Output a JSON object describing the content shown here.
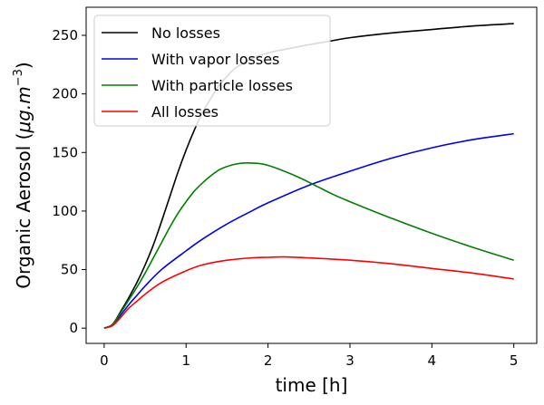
{
  "chart_data": {
    "type": "line",
    "xlabel": "time [h]",
    "ylabel_prefix": "Organic Aerosol (",
    "ylabel_unit_main": "μg.m",
    "ylabel_unit_exp": "−3",
    "ylabel_suffix": ")",
    "xlim": [
      -0.22,
      5.28
    ],
    "ylim": [
      -13,
      274
    ],
    "xticks": [
      0,
      1,
      2,
      3,
      4,
      5
    ],
    "yticks": [
      0,
      50,
      100,
      150,
      200,
      250
    ],
    "grid": false,
    "legend_position": "top-left",
    "series": [
      {
        "name": "No losses",
        "color": "#000000",
        "x": [
          0,
          0.1,
          0.2,
          0.3,
          0.4,
          0.5,
          0.6,
          0.7,
          0.8,
          0.9,
          1.0,
          1.1,
          1.2,
          1.3,
          1.4,
          1.5,
          1.6,
          1.8,
          2.0,
          2.2,
          2.5,
          2.75,
          3.0,
          3.5,
          4.0,
          4.5,
          5.0
        ],
        "y": [
          0,
          3,
          14,
          26,
          39,
          54,
          71,
          91,
          112,
          133,
          152,
          169,
          184,
          196,
          207,
          215,
          222,
          230,
          235,
          238,
          242,
          245,
          248,
          252,
          255,
          258,
          260
        ]
      },
      {
        "name": "With vapor losses",
        "color": "#0000ee",
        "x": [
          0,
          0.1,
          0.2,
          0.3,
          0.4,
          0.5,
          0.7,
          1.0,
          1.2,
          1.5,
          1.8,
          2.0,
          2.5,
          3.0,
          3.5,
          4.0,
          4.5,
          5.0
        ],
        "y": [
          0,
          3,
          11,
          20,
          28,
          36,
          50,
          66,
          76,
          89,
          100,
          107,
          122,
          134,
          145,
          154,
          161,
          166
        ]
      },
      {
        "name": "With particle losses",
        "color": "#008000",
        "x": [
          0,
          0.1,
          0.2,
          0.3,
          0.4,
          0.5,
          0.6,
          0.7,
          0.8,
          0.9,
          1.0,
          1.1,
          1.2,
          1.3,
          1.4,
          1.5,
          1.6,
          1.7,
          1.8,
          1.9,
          2.0,
          2.2,
          2.4,
          2.6,
          2.8,
          3.0,
          3.5,
          4.0,
          4.5,
          5.0
        ],
        "y": [
          0,
          3,
          13,
          24,
          35,
          47,
          60,
          73,
          86,
          98,
          108,
          117,
          124,
          130,
          135,
          138,
          140,
          141,
          141,
          140.5,
          139,
          134,
          128,
          121,
          114,
          108,
          94,
          81,
          69,
          58
        ]
      },
      {
        "name": "All losses",
        "color": "#ff0000",
        "x": [
          0,
          0.1,
          0.2,
          0.3,
          0.4,
          0.5,
          0.7,
          1.0,
          1.2,
          1.5,
          1.8,
          2.0,
          2.2,
          2.5,
          3.0,
          3.5,
          4.0,
          4.5,
          5.0
        ],
        "y": [
          0,
          2,
          9,
          17,
          23,
          29,
          39,
          49,
          54,
          58,
          60,
          60.5,
          60.8,
          60,
          58,
          55,
          51,
          47,
          42
        ]
      }
    ]
  }
}
